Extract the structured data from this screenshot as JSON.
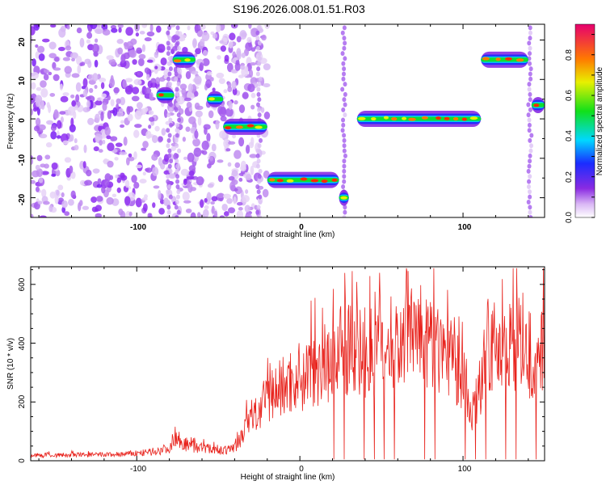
{
  "title": "S196.2026.008.01.51.R03",
  "chart_data": [
    {
      "type": "heatmap",
      "xlabel": "Height of straight line (km)",
      "ylabel": "Frequency (Hz)",
      "xlim": [
        -165,
        150
      ],
      "ylim": [
        -25,
        24
      ],
      "x_ticks": [
        "-100",
        "0",
        "100"
      ],
      "y_ticks": [
        "20",
        "10",
        "0",
        "-10",
        "-20"
      ],
      "colorbar": {
        "label": "Normalized spectral amplitude",
        "range": [
          0,
          0.95
        ],
        "ticks": [
          "0.0",
          "0.2",
          "0.4",
          "0.6",
          "0.8"
        ]
      },
      "segments": [
        {
          "x0": -88,
          "x1": -77,
          "freq": 6
        },
        {
          "x0": -78,
          "x1": -64,
          "freq": 15
        },
        {
          "x0": -57,
          "x1": -47,
          "freq": 5
        },
        {
          "x0": -47,
          "x1": -20,
          "freq": -2
        },
        {
          "x0": -20,
          "x1": 24,
          "freq": -15.5
        },
        {
          "x0": 24,
          "x1": 30,
          "freq": -20
        },
        {
          "x0": 35,
          "x1": 111,
          "freq": 0
        },
        {
          "x0": 111,
          "x1": 140,
          "freq": 15
        },
        {
          "x0": 142,
          "x1": 150,
          "freq": 3.5
        }
      ]
    },
    {
      "type": "line",
      "xlabel": "Height of straight line (km)",
      "ylabel": "SNR (10 * v/v)",
      "xlim": [
        -165,
        150
      ],
      "ylim": [
        0,
        660
      ],
      "x_ticks": [
        "-100",
        "0",
        "100"
      ],
      "y_ticks": [
        "600",
        "400",
        "200",
        "0"
      ],
      "series": [
        {
          "name": "SNR",
          "color": "#e8221c",
          "x": [
            -165,
            -140,
            -110,
            -90,
            -80,
            -76,
            -70,
            -60,
            -45,
            -38,
            -32,
            -25,
            -18,
            -10,
            0,
            10,
            20,
            27,
            35,
            45,
            55,
            65,
            75,
            85,
            95,
            102,
            106,
            112,
            120,
            128,
            135,
            142,
            150
          ],
          "y": [
            18,
            20,
            22,
            30,
            45,
            90,
            55,
            45,
            35,
            60,
            130,
            170,
            230,
            260,
            300,
            330,
            360,
            400,
            380,
            380,
            400,
            430,
            420,
            400,
            360,
            250,
            150,
            310,
            400,
            420,
            380,
            360,
            450
          ]
        }
      ]
    }
  ]
}
